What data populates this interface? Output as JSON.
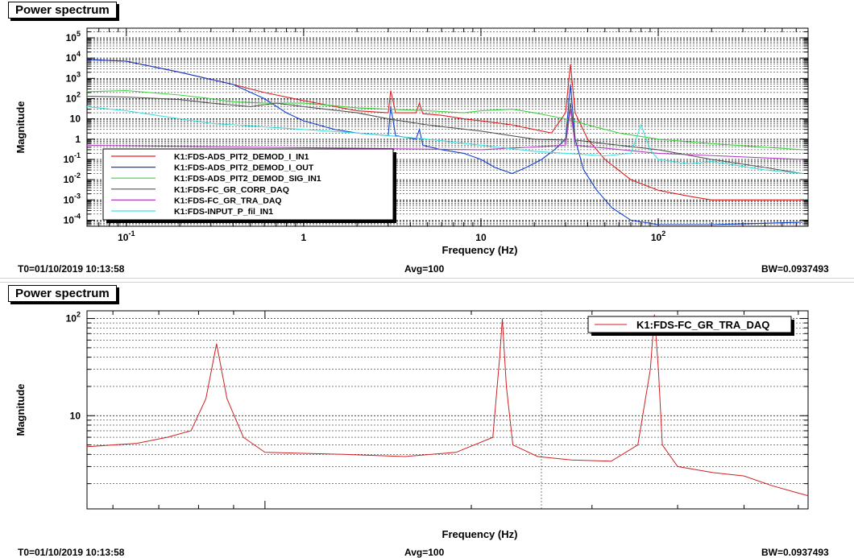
{
  "panels": [
    {
      "title": "Power spectrum",
      "status": {
        "t0": "T0=01/10/2019 10:13:58",
        "avg": "Avg=100",
        "bw": "BW=0.0937493"
      }
    },
    {
      "title": "Power spectrum",
      "status": {
        "t0": "T0=01/10/2019 10:13:58",
        "avg": "Avg=100",
        "bw": "BW=0.0937493"
      }
    }
  ],
  "chart_data": [
    {
      "type": "line",
      "xlabel": "Frequency (Hz)",
      "ylabel": "Magnitude",
      "xscale": "log",
      "yscale": "log",
      "xlim": [
        0.06,
        700
      ],
      "ylim": [
        5e-05,
        300000
      ],
      "xticks": [
        {
          "v": 0.1,
          "label": "10",
          "sup": "-1"
        },
        {
          "v": 1,
          "label": "1",
          "sup": ""
        },
        {
          "v": 10,
          "label": "10",
          "sup": ""
        },
        {
          "v": 100,
          "label": "10",
          "sup": "2"
        }
      ],
      "yticks": [
        {
          "v": 100000,
          "label": "10",
          "sup": "5"
        },
        {
          "v": 10000,
          "label": "10",
          "sup": "4"
        },
        {
          "v": 1000,
          "label": "10",
          "sup": "3"
        },
        {
          "v": 100,
          "label": "10",
          "sup": "2"
        },
        {
          "v": 10,
          "label": "10",
          "sup": ""
        },
        {
          "v": 1,
          "label": "1",
          "sup": ""
        },
        {
          "v": 0.1,
          "label": "10",
          "sup": "-1"
        },
        {
          "v": 0.01,
          "label": "10",
          "sup": "-2"
        },
        {
          "v": 0.001,
          "label": "10",
          "sup": "-3"
        },
        {
          "v": 0.0001,
          "label": "10",
          "sup": "-4"
        }
      ],
      "legend_position": "lower-left",
      "series": [
        {
          "name": "K1:FDS-ADS_PIT2_DEMOD_I_IN1",
          "color": "#e02020",
          "points": [
            [
              0.06,
              8500
            ],
            [
              0.1,
              7000
            ],
            [
              0.2,
              2000
            ],
            [
              0.4,
              500
            ],
            [
              0.6,
              200
            ],
            [
              1,
              80
            ],
            [
              2,
              25
            ],
            [
              3,
              20
            ],
            [
              3.1,
              250
            ],
            [
              3.3,
              20
            ],
            [
              4.3,
              20
            ],
            [
              4.5,
              60
            ],
            [
              4.7,
              18
            ],
            [
              6,
              15
            ],
            [
              8,
              10
            ],
            [
              10,
              8
            ],
            [
              15,
              5
            ],
            [
              20,
              3
            ],
            [
              25,
              2
            ],
            [
              30,
              20
            ],
            [
              32,
              5000
            ],
            [
              34,
              20
            ],
            [
              40,
              1
            ],
            [
              50,
              0.1
            ],
            [
              70,
              0.01
            ],
            [
              100,
              0.003
            ],
            [
              150,
              0.0015
            ],
            [
              200,
              0.001
            ],
            [
              400,
              0.001
            ],
            [
              650,
              0.001
            ]
          ]
        },
        {
          "name": "K1:FDS-ADS_PIT2_DEMOD_I_OUT",
          "color": "#1040d0",
          "points": [
            [
              0.06,
              8500
            ],
            [
              0.1,
              7000
            ],
            [
              0.2,
              2000
            ],
            [
              0.4,
              500
            ],
            [
              0.6,
              100
            ],
            [
              0.8,
              20
            ],
            [
              1,
              8
            ],
            [
              1.5,
              3
            ],
            [
              2,
              2
            ],
            [
              3,
              1.5
            ],
            [
              3.1,
              40
            ],
            [
              3.3,
              1.5
            ],
            [
              4.3,
              1
            ],
            [
              4.5,
              3
            ],
            [
              4.7,
              0.5
            ],
            [
              6,
              0.3
            ],
            [
              8,
              0.2
            ],
            [
              10,
              0.1
            ],
            [
              12,
              0.04
            ],
            [
              15,
              0.02
            ],
            [
              18,
              0.04
            ],
            [
              22,
              0.1
            ],
            [
              26,
              0.3
            ],
            [
              30,
              1
            ],
            [
              32,
              500
            ],
            [
              34,
              1
            ],
            [
              38,
              0.03
            ],
            [
              45,
              0.003
            ],
            [
              55,
              0.0004
            ],
            [
              70,
              0.0001
            ],
            [
              100,
              6e-05
            ],
            [
              200,
              6e-05
            ],
            [
              400,
              7e-05
            ],
            [
              650,
              8e-05
            ]
          ]
        },
        {
          "name": "K1:FDS-ADS_PIT2_DEMOD_SIG_IN1",
          "color": "#40d040",
          "points": [
            [
              0.06,
              220
            ],
            [
              0.1,
              250
            ],
            [
              0.2,
              150
            ],
            [
              0.3,
              100
            ],
            [
              0.4,
              70
            ],
            [
              0.6,
              60
            ],
            [
              1,
              60
            ],
            [
              2,
              35
            ],
            [
              3,
              30
            ],
            [
              5,
              25
            ],
            [
              8,
              20
            ],
            [
              10,
              25
            ],
            [
              15,
              30
            ],
            [
              20,
              20
            ],
            [
              30,
              10
            ],
            [
              40,
              5
            ],
            [
              60,
              2
            ],
            [
              100,
              1
            ],
            [
              200,
              0.6
            ],
            [
              400,
              0.4
            ],
            [
              650,
              0.3
            ]
          ]
        },
        {
          "name": "K1:FDS-FC_GR_CORR_DAQ",
          "color": "#555555",
          "points": [
            [
              0.06,
              130
            ],
            [
              0.1,
              120
            ],
            [
              0.2,
              90
            ],
            [
              0.3,
              60
            ],
            [
              0.5,
              40
            ],
            [
              0.7,
              60
            ],
            [
              1,
              40
            ],
            [
              2,
              20
            ],
            [
              3,
              10
            ],
            [
              5,
              5
            ],
            [
              10,
              2.5
            ],
            [
              20,
              1
            ],
            [
              30,
              0.9
            ],
            [
              32,
              60
            ],
            [
              34,
              0.9
            ],
            [
              50,
              0.6
            ],
            [
              100,
              0.3
            ],
            [
              200,
              0.1
            ],
            [
              400,
              0.04
            ],
            [
              650,
              0.02
            ]
          ]
        },
        {
          "name": "K1:FDS-FC_GR_TRA_DAQ",
          "color": "#b040c0",
          "points": [
            [
              0.06,
              0.5
            ],
            [
              10,
              0.3
            ],
            [
              30,
              0.5
            ],
            [
              32,
              30
            ],
            [
              34,
              0.5
            ],
            [
              100,
              0.2
            ],
            [
              650,
              0.1
            ]
          ]
        },
        {
          "name": "K1:FDS-INPUT_P_fil_IN1",
          "color": "#40e0e0",
          "points": [
            [
              0.06,
              40
            ],
            [
              0.1,
              25
            ],
            [
              0.2,
              10
            ],
            [
              0.3,
              6
            ],
            [
              0.6,
              4
            ],
            [
              1,
              3
            ],
            [
              2,
              2
            ],
            [
              3,
              1.5
            ],
            [
              5,
              1
            ],
            [
              10,
              0.5
            ],
            [
              20,
              0.25
            ],
            [
              30,
              0.2
            ],
            [
              50,
              0.15
            ],
            [
              70,
              0.2
            ],
            [
              80,
              5
            ],
            [
              90,
              0.3
            ],
            [
              100,
              0.1
            ],
            [
              150,
              0.06
            ],
            [
              200,
              0.08
            ],
            [
              400,
              0.03
            ],
            [
              650,
              0.02
            ]
          ]
        }
      ]
    },
    {
      "type": "line",
      "xlabel": "Frequency (Hz)",
      "ylabel": "Magnitude",
      "xscale": "log",
      "yscale": "log",
      "xlim": [
        0.055,
        0.62
      ],
      "ylim": [
        1.1,
        120
      ],
      "yticks": [
        {
          "v": 100,
          "label": "10",
          "sup": "2"
        },
        {
          "v": 10,
          "label": "10",
          "sup": ""
        }
      ],
      "legend_position": "top-right",
      "series": [
        {
          "name": "K1:FDS-FC_GR_TRA_DAQ",
          "color": "#d02020",
          "points": [
            [
              0.055,
              4.8
            ],
            [
              0.065,
              5.2
            ],
            [
              0.072,
              6
            ],
            [
              0.078,
              7
            ],
            [
              0.082,
              15
            ],
            [
              0.085,
              55
            ],
            [
              0.088,
              15
            ],
            [
              0.093,
              6
            ],
            [
              0.1,
              4.2
            ],
            [
              0.13,
              4
            ],
            [
              0.16,
              3.8
            ],
            [
              0.19,
              4.2
            ],
            [
              0.215,
              6
            ],
            [
              0.22,
              40
            ],
            [
              0.222,
              100
            ],
            [
              0.225,
              20
            ],
            [
              0.23,
              5
            ],
            [
              0.25,
              3.8
            ],
            [
              0.28,
              3.5
            ],
            [
              0.32,
              3.4
            ],
            [
              0.35,
              5
            ],
            [
              0.365,
              30
            ],
            [
              0.37,
              110
            ],
            [
              0.375,
              30
            ],
            [
              0.38,
              5
            ],
            [
              0.4,
              3
            ],
            [
              0.45,
              2.6
            ],
            [
              0.5,
              2.4
            ],
            [
              0.55,
              1.9
            ],
            [
              0.6,
              1.6
            ],
            [
              0.62,
              1.5
            ]
          ]
        }
      ]
    }
  ]
}
